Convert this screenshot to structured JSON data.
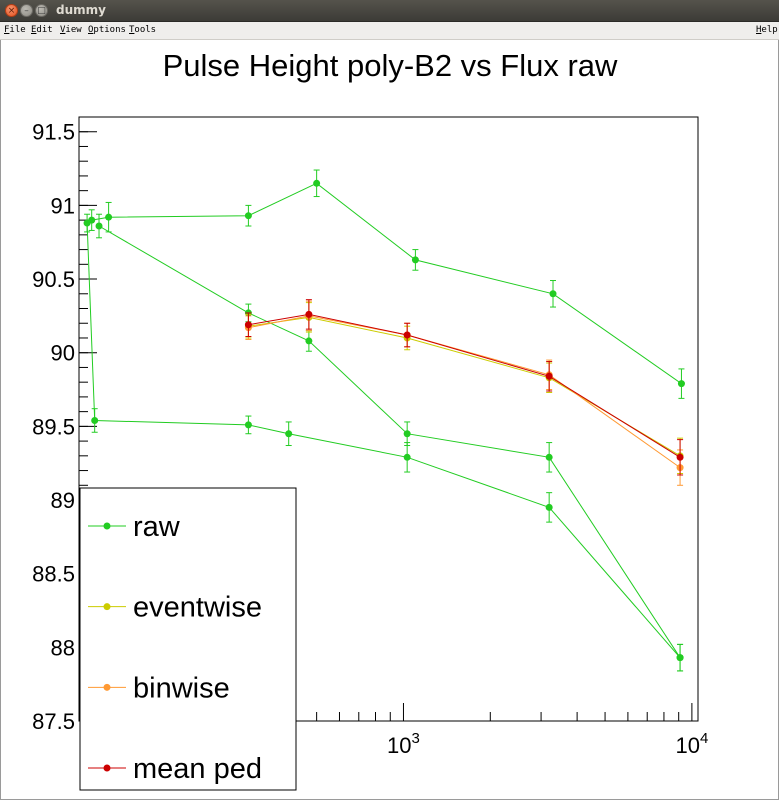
{
  "window": {
    "title": "dummy"
  },
  "menu": {
    "file": "File",
    "edit": "Edit",
    "view": "View",
    "options": "Options",
    "tools": "Tools",
    "help": "Help"
  },
  "chart_data": {
    "type": "line",
    "title": "Pulse Height poly-B2 vs Flux raw",
    "xlabel": "",
    "ylabel": "",
    "x_scale": "log",
    "xlim": [
      75,
      10500
    ],
    "ylim": [
      87.5,
      91.6
    ],
    "y_ticks": [
      "87.5",
      "88",
      "88.5",
      "89",
      "89.5",
      "90",
      "90.5",
      "91",
      "91.5"
    ],
    "x_ticks": [
      {
        "value": 1000,
        "base": "10",
        "exp": "3"
      },
      {
        "value": 10000,
        "base": "10",
        "exp": "4"
      }
    ],
    "legend_position": "bottom-left",
    "series": [
      {
        "name": "raw",
        "color": "#22cc22",
        "marker": "circle",
        "segments": [
          {
            "x": [
              80,
              85,
              290,
              400,
              1030,
              3200,
              9100
            ],
            "y": [
              90.88,
              89.54,
              89.51,
              89.45,
              89.29,
              88.95,
              87.93
            ],
            "err": [
              0.06,
              0.08,
              0.06,
              0.08,
              0.1,
              0.1,
              0.09
            ]
          },
          {
            "x": [
              83,
              95,
              290,
              500,
              1100,
              3300,
              9200
            ],
            "y": [
              90.9,
              90.92,
              90.93,
              91.15,
              90.63,
              90.4,
              89.79
            ],
            "err": [
              0.07,
              0.1,
              0.07,
              0.09,
              0.07,
              0.09,
              0.1
            ]
          },
          {
            "x": [
              88,
              290,
              470,
              1030,
              3200,
              9100
            ],
            "y": [
              90.86,
              90.27,
              90.08,
              89.45,
              89.29,
              87.93
            ],
            "err": [
              0.08,
              0.06,
              0.07,
              0.08,
              0.1,
              0.09
            ]
          }
        ]
      },
      {
        "name": "eventwise",
        "color": "#cccc00",
        "marker": "circle",
        "x": [
          290,
          470,
          1030,
          3200,
          9100
        ],
        "y": [
          90.18,
          90.24,
          90.1,
          89.83,
          89.3
        ],
        "err": [
          0.08,
          0.1,
          0.08,
          0.1,
          0.12
        ]
      },
      {
        "name": "binwise",
        "color": "#ff9933",
        "marker": "circle",
        "x": [
          290,
          470,
          1030,
          3200,
          9100
        ],
        "y": [
          90.17,
          90.25,
          90.12,
          89.85,
          89.22
        ],
        "err": [
          0.08,
          0.1,
          0.08,
          0.1,
          0.12
        ]
      },
      {
        "name": "mean ped",
        "color": "#cc0000",
        "marker": "circle",
        "x": [
          290,
          470,
          1030,
          3200,
          9100
        ],
        "y": [
          90.19,
          90.26,
          90.12,
          89.84,
          89.29
        ],
        "err": [
          0.08,
          0.1,
          0.08,
          0.1,
          0.12
        ]
      }
    ]
  }
}
